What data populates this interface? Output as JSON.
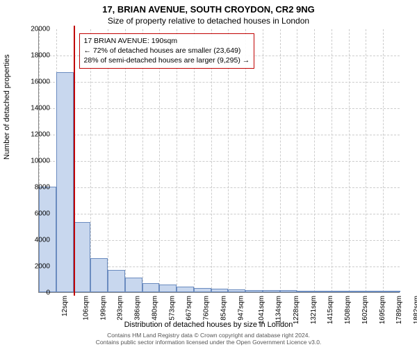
{
  "titles": {
    "main": "17, BRIAN AVENUE, SOUTH CROYDON, CR2 9NG",
    "sub": "Size of property relative to detached houses in London"
  },
  "chart": {
    "type": "histogram",
    "background_color": "#ffffff",
    "grid_color": "#cccccc",
    "axis_color": "#888888",
    "bar_fill": "#c8d7ee",
    "bar_stroke": "#6a8bbf",
    "marker_color": "#c00000",
    "ylim": [
      0,
      20000
    ],
    "ytick_step": 2000,
    "yticks": [
      0,
      2000,
      4000,
      6000,
      8000,
      10000,
      12000,
      14000,
      16000,
      18000,
      20000
    ],
    "xticks": [
      "12sqm",
      "106sqm",
      "199sqm",
      "293sqm",
      "386sqm",
      "480sqm",
      "573sqm",
      "667sqm",
      "760sqm",
      "854sqm",
      "947sqm",
      "1041sqm",
      "1134sqm",
      "1228sqm",
      "1321sqm",
      "1415sqm",
      "1508sqm",
      "1602sqm",
      "1695sqm",
      "1789sqm",
      "1882sqm"
    ],
    "bars": [
      8000,
      16700,
      5300,
      2600,
      1700,
      1100,
      700,
      600,
      400,
      300,
      250,
      200,
      180,
      150,
      140,
      120,
      110,
      100,
      90,
      80,
      70
    ],
    "marker_x_index": 2,
    "ylabel": "Number of detached properties",
    "xlabel": "Distribution of detached houses by size in London",
    "label_fontsize": 11,
    "tick_fontsize": 10
  },
  "callout": {
    "line1": "17 BRIAN AVENUE: 190sqm",
    "line2": "← 72% of detached houses are smaller (23,649)",
    "line3": "28% of semi-detached houses are larger (9,295) →"
  },
  "footer": {
    "line1": "Contains HM Land Registry data © Crown copyright and database right 2024.",
    "line2": "Contains public sector information licensed under the Open Government Licence v3.0."
  }
}
